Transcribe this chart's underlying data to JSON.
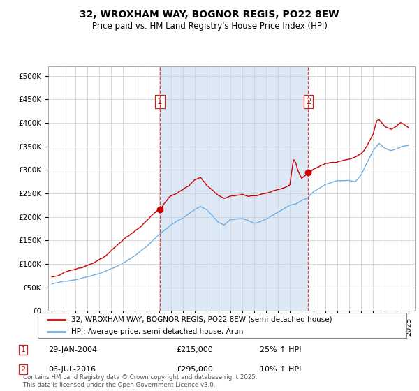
{
  "title": "32, WROXHAM WAY, BOGNOR REGIS, PO22 8EW",
  "subtitle": "Price paid vs. HM Land Registry's House Price Index (HPI)",
  "legend_line1": "32, WROXHAM WAY, BOGNOR REGIS, PO22 8EW (semi-detached house)",
  "legend_line2": "HPI: Average price, semi-detached house, Arun",
  "footnote": "Contains HM Land Registry data © Crown copyright and database right 2025.\nThis data is licensed under the Open Government Licence v3.0.",
  "annotation1_date": "29-JAN-2004",
  "annotation1_price": "£215,000",
  "annotation1_hpi": "25% ↑ HPI",
  "annotation2_date": "06-JUL-2016",
  "annotation2_price": "£295,000",
  "annotation2_hpi": "10% ↑ HPI",
  "red_color": "#cc0000",
  "blue_color": "#6aade4",
  "vline_color": "#dd4444",
  "shading_color": "#dce8f5",
  "ylim_min": 0,
  "ylim_max": 520000,
  "yticks": [
    0,
    50000,
    100000,
    150000,
    200000,
    250000,
    300000,
    350000,
    400000,
    450000,
    500000
  ],
  "ytick_labels": [
    "£0",
    "£50K",
    "£100K",
    "£150K",
    "£200K",
    "£250K",
    "£300K",
    "£350K",
    "£400K",
    "£450K",
    "£500K"
  ],
  "vline1_x": 2004.08,
  "vline2_x": 2016.55,
  "marker1_red_y": 215000,
  "marker2_red_y": 295000,
  "xtick_years": [
    1995,
    1996,
    1997,
    1998,
    1999,
    2000,
    2001,
    2002,
    2003,
    2004,
    2005,
    2006,
    2007,
    2008,
    2009,
    2010,
    2011,
    2012,
    2013,
    2014,
    2015,
    2016,
    2017,
    2018,
    2019,
    2020,
    2021,
    2022,
    2023,
    2024,
    2025
  ],
  "xlim_min": 1994.7,
  "xlim_max": 2025.5
}
